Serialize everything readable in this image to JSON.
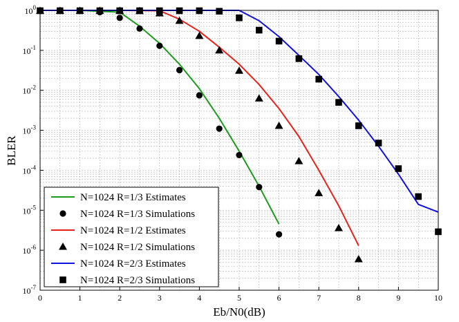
{
  "chart_data": {
    "type": "line",
    "title": "",
    "xlabel": "Eb/N0(dB)",
    "ylabel": "BLER",
    "xlim": [
      0,
      10
    ],
    "ylim_log10": [
      -7,
      0
    ],
    "y_scale": "log",
    "grid": true,
    "legend_position": "bottom-left",
    "x_ticks": [
      "0",
      "1",
      "2",
      "3",
      "4",
      "5",
      "6",
      "7",
      "8",
      "9",
      "10"
    ],
    "y_ticks": [
      {
        "base": "10",
        "exp": "0"
      },
      {
        "base": "10",
        "exp": "-1"
      },
      {
        "base": "10",
        "exp": "-2"
      },
      {
        "base": "10",
        "exp": "-3"
      },
      {
        "base": "10",
        "exp": "-4"
      },
      {
        "base": "10",
        "exp": "-5"
      },
      {
        "base": "10",
        "exp": "-6"
      },
      {
        "base": "10",
        "exp": "-7"
      }
    ],
    "series": [
      {
        "name": "N=1024 R=1/3 Estimates",
        "kind": "line",
        "color": "#1a9c1a",
        "x": [
          0,
          1,
          2,
          2.5,
          3,
          3.5,
          4,
          4.5,
          5,
          5.5,
          6
        ],
        "y": [
          1,
          1,
          0.9,
          0.4,
          0.15,
          0.045,
          0.011,
          0.002,
          0.0003,
          4e-05,
          4.5e-06
        ]
      },
      {
        "name": "N=1024 R=1/3 Simulations",
        "kind": "marker",
        "marker": "circle",
        "color": "#000000",
        "x": [
          0,
          0.5,
          1,
          1.5,
          2,
          2.5,
          3,
          3.5,
          4,
          4.5,
          5,
          5.5,
          6
        ],
        "y": [
          0.98,
          0.98,
          0.97,
          0.9,
          0.65,
          0.35,
          0.13,
          0.032,
          0.0075,
          0.0011,
          0.00024,
          3.8e-05,
          2.5e-06
        ]
      },
      {
        "name": "N=1024 R=1/2 Estimates",
        "kind": "line",
        "color": "#e8201a",
        "x": [
          0,
          1,
          2,
          3,
          3.5,
          4,
          4.5,
          5,
          5.5,
          6,
          6.5,
          7,
          7.5,
          8
        ],
        "y": [
          1,
          1,
          1,
          0.98,
          0.6,
          0.3,
          0.12,
          0.045,
          0.014,
          0.0035,
          0.0007,
          0.0001,
          1.3e-05,
          1.3e-06
        ]
      },
      {
        "name": "N=1024 R=1/2 Simulations",
        "kind": "marker",
        "marker": "triangle",
        "color": "#000000",
        "x": [
          0,
          0.5,
          1,
          1.5,
          2,
          2.5,
          3,
          3.5,
          4,
          4.5,
          5,
          5.5,
          6,
          6.5,
          7,
          7.5,
          8
        ],
        "y": [
          0.98,
          0.98,
          0.98,
          0.98,
          0.98,
          0.97,
          0.85,
          0.55,
          0.23,
          0.1,
          0.031,
          0.0063,
          0.0013,
          0.00017,
          2.7e-05,
          3.6e-06,
          6e-07
        ]
      },
      {
        "name": "N=1024 R=2/3 Estimates",
        "kind": "line",
        "color": "#1010e0",
        "x": [
          0,
          1,
          2,
          3,
          4,
          5,
          5.5,
          6,
          6.5,
          7,
          7.5,
          8,
          8.5,
          9,
          9.5,
          10
        ],
        "y": [
          1,
          1,
          1,
          1,
          1,
          1,
          0.55,
          0.22,
          0.075,
          0.025,
          0.007,
          0.0018,
          0.0004,
          8e-05,
          1.4e-05,
          9e-06
        ]
      },
      {
        "name": "N=1024 R=2/3 Simulations",
        "kind": "marker",
        "marker": "square",
        "color": "#000000",
        "x": [
          0,
          0.5,
          1,
          1.5,
          2,
          2.5,
          3,
          3.5,
          4,
          4.5,
          5,
          5.5,
          6,
          6.5,
          7,
          7.5,
          8,
          8.5,
          9,
          9.5,
          10
        ],
        "y": [
          0.98,
          0.98,
          0.98,
          0.98,
          0.98,
          0.98,
          0.98,
          0.98,
          0.98,
          0.95,
          0.65,
          0.32,
          0.17,
          0.062,
          0.019,
          0.005,
          0.0013,
          0.00048,
          0.00011,
          2.2e-05,
          2.9e-06
        ]
      }
    ]
  }
}
